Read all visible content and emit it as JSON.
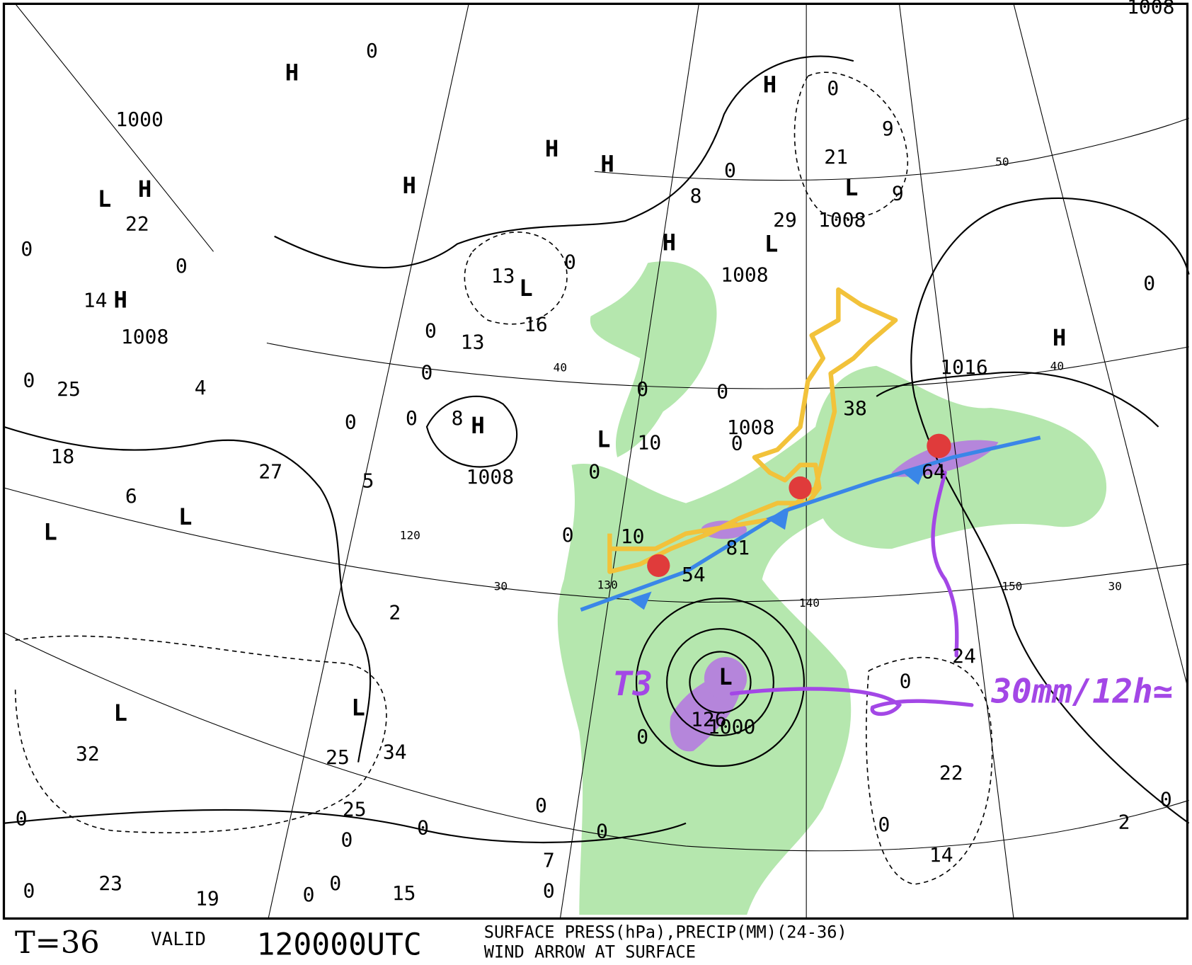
{
  "map": {
    "highs": [
      "H",
      "H",
      "H",
      "H",
      "H",
      "H",
      "H",
      "H",
      "H",
      "H"
    ],
    "lows": [
      "L",
      "L",
      "L",
      "L",
      "L",
      "L",
      "L",
      "L",
      "L",
      "L"
    ],
    "pressure_labels": [
      "1000",
      "1008",
      "1008",
      "1008",
      "1008",
      "1008",
      "1016",
      "1000",
      "1008"
    ],
    "precip_labels": [
      "22",
      "14",
      "25",
      "18",
      "6",
      "4",
      "27",
      "5",
      "13",
      "16",
      "13",
      "8",
      "0",
      "0",
      "0",
      "0",
      "0",
      "0",
      "0",
      "0",
      "8",
      "21",
      "29",
      "9",
      "9",
      "0",
      "0",
      "0",
      "10",
      "0",
      "0",
      "0",
      "38",
      "64",
      "0",
      "10",
      "81",
      "54",
      "2",
      "24",
      "0",
      "0",
      "126",
      "22",
      "0",
      "2",
      "0",
      "14",
      "0",
      "0",
      "0",
      "7",
      "32",
      "25",
      "34",
      "25",
      "0",
      "0",
      "0",
      "23",
      "19",
      "0",
      "0",
      "15",
      "0",
      "0",
      "0"
    ],
    "graticule_labels": [
      "50",
      "40",
      "40",
      "30",
      "30",
      "120",
      "130",
      "140",
      "150"
    ],
    "annotations": [
      "T3",
      "30mm/12h≃"
    ]
  },
  "footer": {
    "forecast_time": "T=36",
    "valid_label": "VALID",
    "valid_time": "120000UTC",
    "description_line1": "SURFACE PRESS(hPa),PRECIP(MM)(24-36)",
    "description_line2": "WIND ARROW AT SURFACE"
  }
}
